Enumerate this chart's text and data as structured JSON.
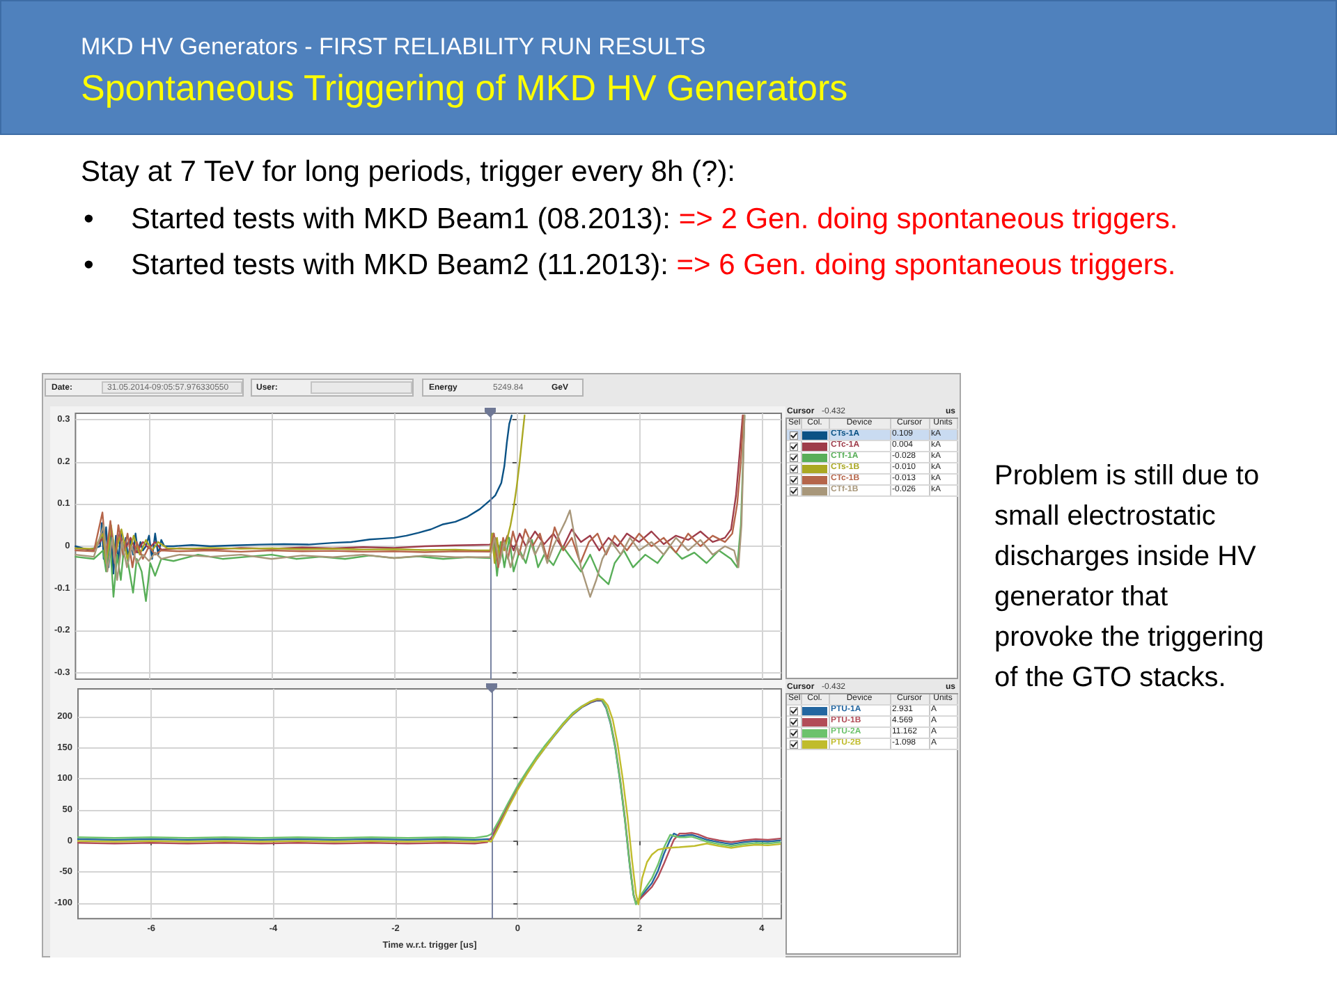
{
  "chart_data": [
    {
      "type": "other",
      "title": "MKD HV Generators - FIRST RELIABILITY RUN RESULTS",
      "subtitle": "Spontaneous Triggering of MKD HV Generators",
      "annotations": [
        "Stay at 7 TeV for long periods, trigger every 8h (?):",
        "•",
        "Started tests with MKD Beam1 (08.2013):",
        "=> 2 Gen. doing spontaneous triggers.",
        "•",
        "Started tests with MKD Beam2 (11.2013):",
        "=> 6 Gen. doing spontaneous triggers.",
        "Problem is still due to small electrostatic discharges inside HV generator that provoke the triggering of the GTO stacks."
      ]
    },
    {
      "type": "line",
      "xlim": [
        -7.2,
        4.32
      ],
      "xticks": [
        -6,
        -4,
        -2,
        0,
        2,
        4
      ],
      "ylim": [
        -0.315,
        0.315
      ],
      "yticks": [
        -0.3,
        -0.2,
        -0.1,
        0,
        0.1,
        0.2,
        0.3
      ],
      "tick_labels": "y",
      "grid": true,
      "legend": "right",
      "ref_lines": [
        {
          "axis": "x",
          "value": -0.432
        }
      ],
      "annotations": [
        "Date:",
        "31.05.2014-09:05:57.976330550",
        "User:",
        "Energy",
        "5249.84",
        "GeV",
        "Cursor",
        "-0.432",
        "us",
        "Sel",
        "Col.",
        "Device",
        "Cursor",
        "Units",
        "0.109",
        "kA",
        "0.004",
        "kA",
        "-0.028",
        "kA",
        "-0.010",
        "kA",
        "-0.013",
        "kA",
        "-0.026",
        "kA"
      ],
      "series": [
        {
          "name": "CTs-1A",
          "color": "#0b5285",
          "x": [
            -7.2,
            -7.0,
            -6.9,
            -6.8,
            -6.77,
            -6.74,
            -6.7,
            -6.66,
            -6.62,
            -6.58,
            -6.54,
            -6.5,
            -6.46,
            -6.42,
            -6.38,
            -6.34,
            -6.3,
            -6.26,
            -6.22,
            -6.18,
            -6.14,
            -6.1,
            -6.05,
            -6.0,
            -5.95,
            -5.9,
            -5.85,
            -5.8,
            -5.75,
            -5.6,
            -5.3,
            -5.0,
            -4.6,
            -4.2,
            -3.8,
            -3.4,
            -3.0,
            -2.7,
            -2.4,
            -2.2,
            -2.0,
            -1.8,
            -1.6,
            -1.4,
            -1.2,
            -1.0,
            -0.8,
            -0.6,
            -0.432,
            -0.35,
            -0.3,
            -0.25,
            -0.2,
            -0.16,
            -0.12,
            -0.08
          ],
          "values": [
            0.0,
            -0.008,
            -0.005,
            0.0,
            0.055,
            -0.03,
            0.045,
            -0.05,
            0.03,
            -0.065,
            0.025,
            -0.04,
            0.035,
            -0.025,
            0.02,
            -0.03,
            0.015,
            -0.02,
            0.03,
            -0.015,
            0.01,
            -0.01,
            0.0,
            0.025,
            -0.03,
            0.03,
            -0.02,
            0.015,
            0.0,
            0.0,
            0.003,
            0.0,
            0.002,
            0.004,
            0.005,
            0.004,
            0.008,
            0.01,
            0.016,
            0.018,
            0.02,
            0.025,
            0.032,
            0.04,
            0.052,
            0.058,
            0.07,
            0.088,
            0.109,
            0.12,
            0.135,
            0.15,
            0.19,
            0.245,
            0.29,
            0.31
          ]
        },
        {
          "name": "CTc-1A",
          "color": "#9e3c4a",
          "x": [
            -7.2,
            -6.9,
            -6.75,
            -6.7,
            -6.62,
            -6.55,
            -6.48,
            -6.4,
            -6.3,
            -6.2,
            -6.1,
            -6.0,
            -5.9,
            -5.8,
            -5.5,
            -5.0,
            -4.5,
            -4.0,
            -3.5,
            -3.0,
            -2.5,
            -2.0,
            -1.5,
            -1.0,
            -0.7,
            -0.432,
            -0.35,
            -0.25,
            -0.15,
            -0.05,
            0.05,
            0.15,
            0.3,
            0.45,
            0.6,
            0.75,
            0.9,
            1.05,
            1.2,
            1.35,
            1.5,
            1.65,
            1.8,
            2.0,
            2.2,
            2.4,
            2.6,
            2.8,
            3.0,
            3.2,
            3.4,
            3.5,
            3.58,
            3.64,
            3.69
          ],
          "values": [
            -0.005,
            -0.008,
            0.02,
            -0.03,
            0.04,
            -0.02,
            0.03,
            -0.01,
            0.02,
            -0.015,
            0.01,
            -0.005,
            0.01,
            -0.008,
            -0.005,
            -0.008,
            -0.004,
            -0.006,
            -0.003,
            -0.005,
            -0.002,
            -0.004,
            0.0,
            0.002,
            0.003,
            0.004,
            0.02,
            -0.015,
            0.025,
            -0.01,
            0.03,
            0.0,
            0.035,
            0.005,
            0.03,
            -0.005,
            0.04,
            0.01,
            0.025,
            -0.01,
            0.02,
            0.0,
            0.03,
            0.01,
            0.035,
            0.005,
            0.025,
            0.015,
            0.035,
            0.01,
            0.02,
            0.04,
            0.12,
            0.22,
            0.31
          ]
        },
        {
          "name": "CTf-1A",
          "color": "#58ae58",
          "x": [
            -7.2,
            -6.9,
            -6.75,
            -6.7,
            -6.64,
            -6.58,
            -6.52,
            -6.46,
            -6.4,
            -6.33,
            -6.26,
            -6.2,
            -6.12,
            -6.05,
            -5.98,
            -5.9,
            -5.8,
            -5.6,
            -5.2,
            -4.8,
            -4.4,
            -4.0,
            -3.6,
            -3.2,
            -2.8,
            -2.4,
            -2.0,
            -1.6,
            -1.2,
            -0.8,
            -0.432,
            -0.38,
            -0.32,
            -0.26,
            -0.2,
            -0.12,
            -0.05,
            0.05,
            0.15,
            0.25,
            0.35,
            0.45,
            0.6,
            0.75,
            0.9,
            1.05,
            1.2,
            1.35,
            1.5,
            1.6,
            1.75,
            1.9,
            2.1,
            2.3,
            2.5,
            2.7,
            2.9,
            3.1,
            3.3,
            3.5,
            3.6,
            3.66,
            3.72
          ],
          "values": [
            -0.025,
            -0.03,
            -0.01,
            -0.06,
            0.02,
            -0.12,
            -0.02,
            -0.08,
            0.01,
            -0.05,
            -0.11,
            -0.03,
            -0.06,
            -0.13,
            -0.04,
            -0.07,
            -0.03,
            -0.035,
            -0.02,
            -0.03,
            -0.025,
            -0.02,
            -0.03,
            -0.025,
            -0.03,
            -0.022,
            -0.028,
            -0.024,
            -0.03,
            -0.026,
            -0.028,
            0.03,
            -0.07,
            0.01,
            -0.05,
            0.02,
            -0.06,
            -0.01,
            -0.04,
            0.015,
            -0.05,
            -0.02,
            -0.045,
            0.0,
            -0.03,
            -0.06,
            -0.02,
            -0.07,
            -0.09,
            -0.04,
            -0.01,
            -0.05,
            -0.02,
            -0.04,
            0.0,
            -0.03,
            -0.015,
            -0.04,
            -0.01,
            -0.03,
            -0.05,
            0.05,
            0.31
          ]
        },
        {
          "name": "CTs-1B",
          "color": "#aaa822",
          "x": [
            -7.2,
            -6.9,
            -6.75,
            -6.7,
            -6.62,
            -6.55,
            -6.45,
            -6.35,
            -6.25,
            -6.15,
            -6.05,
            -5.95,
            -5.85,
            -5.7,
            -5.4,
            -5.0,
            -4.5,
            -4.0,
            -3.5,
            -3.0,
            -2.5,
            -2.0,
            -1.5,
            -1.0,
            -0.7,
            -0.432,
            -0.4,
            -0.36,
            -0.32,
            -0.28,
            -0.24,
            -0.2,
            -0.15,
            -0.1,
            -0.05,
            0.0,
            0.05,
            0.1,
            0.13
          ],
          "values": [
            -0.005,
            -0.006,
            0.03,
            -0.04,
            0.05,
            -0.02,
            0.04,
            -0.03,
            0.025,
            -0.02,
            0.015,
            -0.01,
            0.01,
            -0.005,
            -0.006,
            -0.004,
            -0.006,
            -0.005,
            -0.007,
            -0.006,
            -0.008,
            -0.007,
            -0.009,
            -0.008,
            -0.01,
            -0.01,
            0.03,
            -0.04,
            0.02,
            -0.03,
            0.01,
            -0.01,
            0.02,
            0.05,
            0.09,
            0.14,
            0.2,
            0.27,
            0.31
          ]
        },
        {
          "name": "CTc-1B",
          "color": "#b5654a",
          "x": [
            -7.2,
            -6.9,
            -6.76,
            -6.7,
            -6.63,
            -6.56,
            -6.5,
            -6.42,
            -6.35,
            -6.27,
            -6.2,
            -6.1,
            -6.0,
            -5.9,
            -5.8,
            -5.5,
            -5.0,
            -4.5,
            -4.0,
            -3.5,
            -3.0,
            -2.5,
            -2.0,
            -1.5,
            -1.0,
            -0.432,
            -0.37,
            -0.3,
            -0.22,
            -0.14,
            -0.06,
            0.04,
            0.14,
            0.26,
            0.38,
            0.5,
            0.62,
            0.76,
            0.9,
            1.04,
            1.18,
            1.32,
            1.46,
            1.6,
            1.8,
            2.0,
            2.2,
            2.4,
            2.6,
            2.8,
            3.0,
            3.2,
            3.4,
            3.52,
            3.6,
            3.66,
            3.7
          ],
          "values": [
            -0.01,
            -0.012,
            0.08,
            -0.02,
            0.06,
            -0.04,
            0.05,
            -0.02,
            0.03,
            -0.05,
            0.01,
            -0.03,
            0.0,
            -0.02,
            -0.01,
            -0.012,
            -0.01,
            -0.013,
            -0.01,
            -0.012,
            -0.011,
            -0.013,
            -0.012,
            -0.014,
            -0.012,
            -0.013,
            0.03,
            -0.05,
            0.02,
            -0.03,
            0.035,
            -0.02,
            0.04,
            0.0,
            0.03,
            -0.03,
            0.045,
            -0.01,
            0.02,
            -0.04,
            0.01,
            0.03,
            -0.02,
            0.025,
            -0.01,
            0.03,
            0.0,
            0.02,
            -0.015,
            0.03,
            0.0,
            0.025,
            0.01,
            0.03,
            0.1,
            0.2,
            0.31
          ]
        },
        {
          "name": "CTf-1B",
          "color": "#a8977a",
          "x": [
            -7.2,
            -6.9,
            -6.74,
            -6.68,
            -6.6,
            -6.52,
            -6.44,
            -6.36,
            -6.28,
            -6.2,
            -6.1,
            -6.0,
            -5.9,
            -5.8,
            -5.5,
            -5.0,
            -4.5,
            -4.0,
            -3.5,
            -3.0,
            -2.5,
            -2.0,
            -1.5,
            -1.0,
            -0.432,
            -0.36,
            -0.28,
            -0.2,
            -0.1,
            0.0,
            0.1,
            0.2,
            0.3,
            0.4,
            0.5,
            0.6,
            0.7,
            0.8,
            0.87,
            0.95,
            1.05,
            1.2,
            1.3,
            1.4,
            1.55,
            1.7,
            1.85,
            2.0,
            2.2,
            2.4,
            2.6,
            2.8,
            3.0,
            3.2,
            3.4,
            3.55,
            3.62,
            3.67,
            3.72
          ],
          "values": [
            -0.02,
            -0.025,
            0.05,
            -0.06,
            0.02,
            -0.08,
            0.01,
            -0.05,
            0.0,
            -0.04,
            -0.02,
            -0.035,
            -0.015,
            -0.03,
            -0.02,
            -0.025,
            -0.02,
            -0.03,
            -0.022,
            -0.026,
            -0.02,
            -0.028,
            -0.022,
            -0.026,
            -0.026,
            0.02,
            -0.04,
            0.01,
            -0.05,
            0.0,
            -0.03,
            0.02,
            -0.02,
            0.01,
            -0.04,
            0.0,
            0.03,
            0.06,
            0.085,
            0.02,
            -0.05,
            -0.12,
            -0.08,
            -0.03,
            0.01,
            -0.02,
            0.02,
            -0.01,
            0.01,
            -0.02,
            0.02,
            -0.01,
            0.015,
            -0.02,
            0.0,
            -0.01,
            -0.05,
            0.05,
            0.31
          ]
        }
      ]
    },
    {
      "type": "line",
      "xlabel": "Time w.r.t. trigger [us]",
      "xlim": [
        -7.2,
        4.32
      ],
      "xticks": [
        -6,
        -4,
        -2,
        0,
        2,
        4
      ],
      "ylim": [
        -125,
        245
      ],
      "yticks": [
        -100,
        -50,
        0,
        50,
        100,
        150,
        200
      ],
      "grid": true,
      "legend": "right",
      "ref_lines": [
        {
          "axis": "x",
          "value": -0.432
        }
      ],
      "annotations": [
        "Cursor",
        "-0.432",
        "us",
        "Sel",
        "Col.",
        "Device",
        "Cursor",
        "Units",
        "2.931",
        "A",
        "4.569",
        "A",
        "11.162",
        "A",
        "-1.098",
        "A"
      ],
      "x": [
        -7.2,
        -6.6,
        -6.0,
        -5.4,
        -4.8,
        -4.2,
        -3.6,
        -3.0,
        -2.4,
        -1.8,
        -1.2,
        -0.7,
        -0.5,
        -0.432,
        -0.3,
        -0.15,
        0,
        0.15,
        0.3,
        0.45,
        0.6,
        0.75,
        0.9,
        1.05,
        1.2,
        1.3,
        1.38,
        1.45,
        1.52,
        1.6,
        1.68,
        1.76,
        1.84,
        1.9,
        1.94,
        2.0,
        2.1,
        2.2,
        2.3,
        2.4,
        2.5,
        2.56,
        2.65,
        2.75,
        2.85,
        2.95,
        3.1,
        3.3,
        3.5,
        3.7,
        3.9,
        4.1,
        4.3
      ],
      "series": [
        {
          "name": "PTU-1A",
          "color": "#2366a0",
          "values": [
            3,
            2,
            3,
            2,
            3,
            2,
            3,
            2,
            3,
            2,
            3,
            2,
            3,
            3,
            28,
            57,
            84,
            108,
            130,
            150,
            169,
            187,
            203,
            215,
            223,
            226,
            226,
            214,
            190,
            150,
            96,
            32,
            -42,
            -88,
            -101,
            -92,
            -80,
            -68,
            -48,
            -20,
            2,
            12,
            8,
            9,
            10,
            7,
            2,
            -2,
            -5,
            -2,
            0,
            -1,
            1
          ]
        },
        {
          "name": "PTU-1B",
          "color": "#b24c58",
          "values": [
            -3,
            -4,
            -3,
            -4,
            -3,
            -4,
            -3,
            -4,
            -3,
            -4,
            -3,
            -4,
            -2,
            5,
            30,
            59,
            86,
            110,
            132,
            152,
            171,
            189,
            205,
            216,
            224,
            227,
            227,
            216,
            193,
            154,
            100,
            36,
            -38,
            -86,
            -100,
            -94,
            -84,
            -74,
            -58,
            -36,
            -12,
            2,
            12,
            12,
            13,
            11,
            5,
            1,
            -2,
            1,
            3,
            2,
            4
          ]
        },
        {
          "name": "PTU-2A",
          "color": "#6cc26c",
          "values": [
            6,
            5,
            6,
            5,
            6,
            5,
            6,
            5,
            6,
            5,
            6,
            5,
            8,
            11,
            34,
            62,
            89,
            112,
            134,
            154,
            172,
            190,
            206,
            217,
            225,
            228,
            228,
            216,
            192,
            152,
            98,
            34,
            -40,
            -87,
            -102,
            -90,
            -75,
            -60,
            -38,
            -10,
            10,
            8,
            6,
            6,
            7,
            4,
            -1,
            -5,
            -8,
            -5,
            -3,
            -4,
            -2
          ]
        },
        {
          "name": "PTU-2B",
          "color": "#c0bc2c",
          "x": [
            -7.2,
            -6.6,
            -6.0,
            -5.4,
            -4.8,
            -4.2,
            -3.6,
            -3.0,
            -2.4,
            -1.8,
            -1.2,
            -0.7,
            -0.5,
            -0.432,
            -0.3,
            -0.15,
            0,
            0.15,
            0.3,
            0.45,
            0.6,
            0.75,
            0.9,
            1.05,
            1.2,
            1.3,
            1.4,
            1.48,
            1.56,
            1.64,
            1.72,
            1.8,
            1.88,
            1.94,
            1.98,
            2.04,
            2.12,
            2.2,
            2.3,
            2.45,
            2.65,
            2.9,
            3.1,
            3.3,
            3.5,
            3.7,
            3.9,
            4.1,
            4.3
          ],
          "values": [
            0,
            -1,
            0,
            -1,
            0,
            -1,
            0,
            -1,
            0,
            -1,
            0,
            -1,
            0,
            -1,
            24,
            54,
            82,
            107,
            130,
            150,
            170,
            188,
            204,
            216,
            225,
            229,
            228,
            218,
            195,
            155,
            102,
            40,
            -35,
            -85,
            -102,
            -60,
            -34,
            -22,
            -14,
            -11,
            -10,
            -8,
            -4,
            -8,
            -11,
            -8,
            -6,
            -7,
            -5
          ]
        }
      ]
    }
  ]
}
